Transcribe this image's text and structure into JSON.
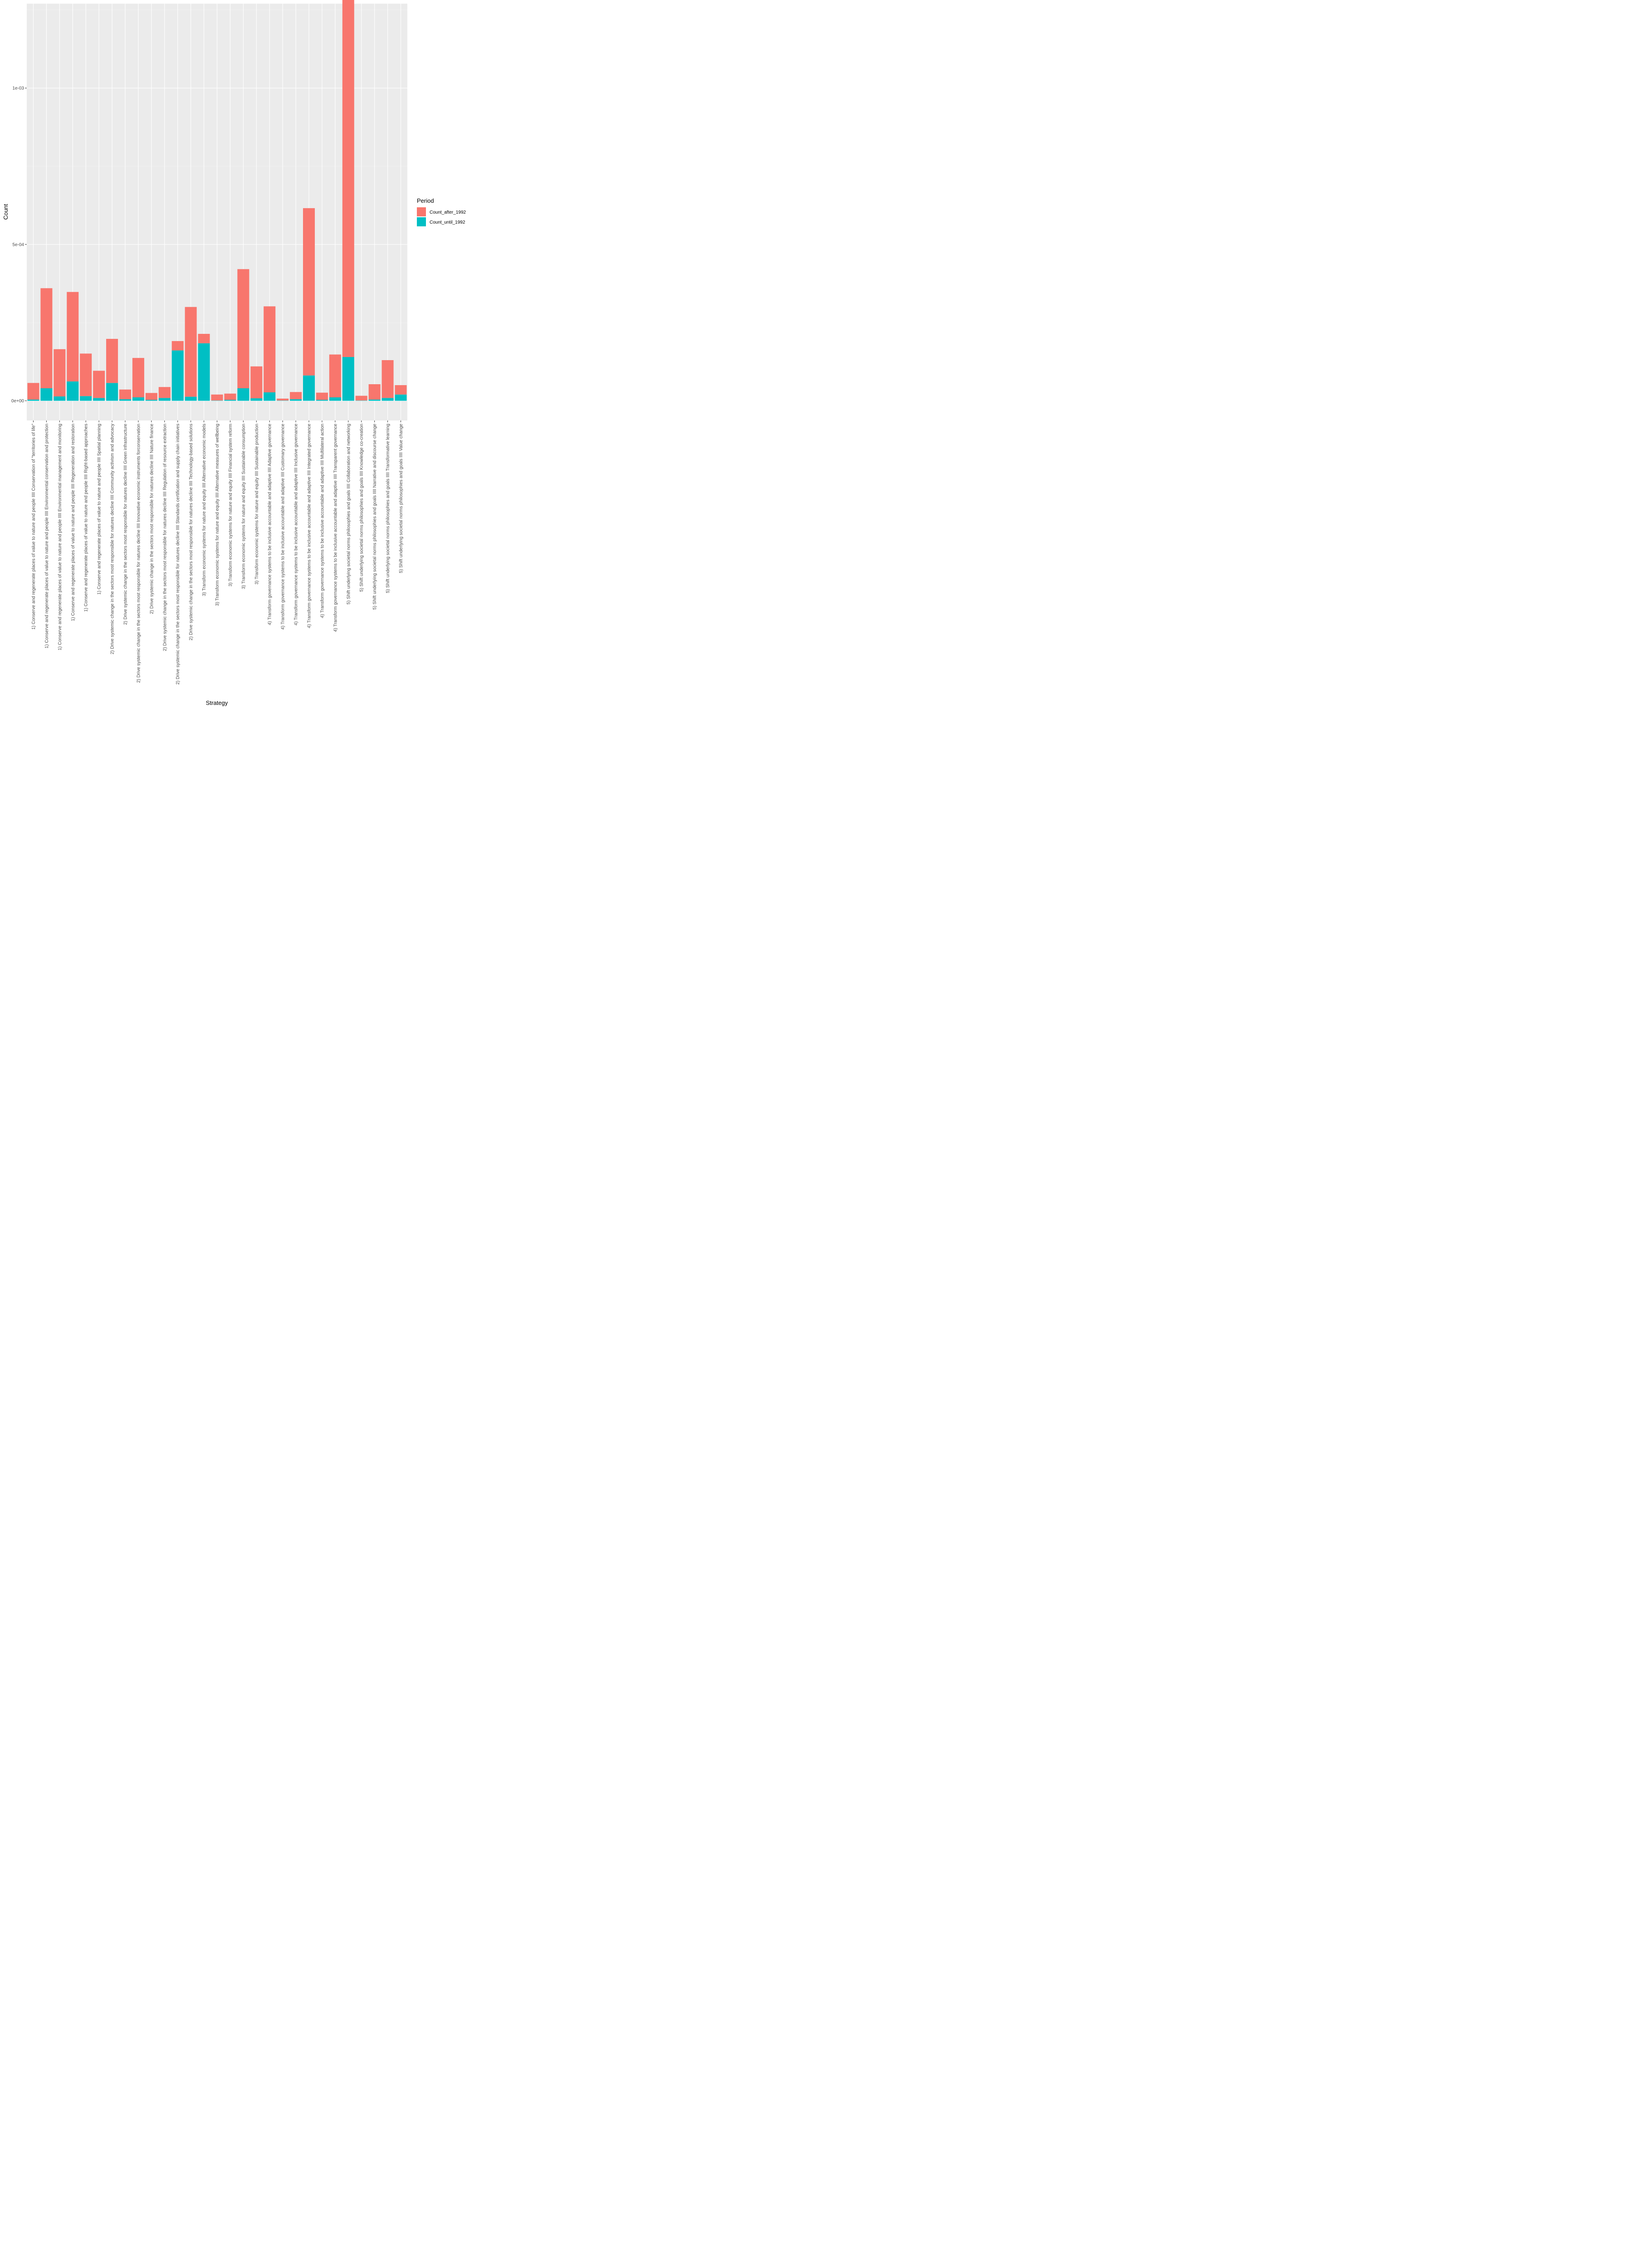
{
  "chart_data": {
    "type": "bar",
    "stacked": true,
    "xlabel": "Strategy",
    "ylabel": "Count",
    "ylim": [
      -6.3e-05,
      0.00127
    ],
    "y_ticks": [
      0,
      0.0005,
      0.001
    ],
    "y_tick_labels": [
      "0e+00",
      "5e-04",
      "1e-03"
    ],
    "grid": true,
    "legend": {
      "title": "Period",
      "position": "right"
    },
    "categories": [
      "1) Conserve and regenerate places of value to nature and people IIII Conservation of \"territories of life\"",
      "1) Conserve and regenerate places of value to nature and people IIII Environmental conservation and protection",
      "1) Conserve and regenerate places of value to nature and people IIII Environmental management and monitoring",
      "1) Conserve and regenerate places of value to nature and people IIII Regeneration and restoration",
      "1) Conserve and regenerate places of value to nature and people IIII Right-based approaches",
      "1) Conserve and regenerate places of value to nature and people IIII Spatial planning",
      "2) Drive systemic change in the sectors most responsible for natures decline IIII Community activism and advocacy",
      "2) Drive systemic change in the sectors most responsible for natures decline IIII Green infrastructure",
      "2) Drive systemic change in the sectors most responsible for natures decline IIII Innovative economic instruments forconservation",
      "2) Drive systemic change in the sectors most responsible for natures decline IIII Nature finance",
      "2) Drive systemic change in the sectors most responsible for natures decline IIII Regulation of resource extraction",
      "2) Drive systemic change in the sectors most responsible for natures decline IIII Standards certification and supply chain initiatives",
      "2) Drive systemic change in the sectors most responsible for natures decline IIII Technology-based solutions",
      "3) Transform economic systems for nature and equity IIII Alternative economic models",
      "3) Transform economic systems for nature and equity IIII Alternative measures of wellbeing",
      "3) Transform economic systems for nature and equity IIII Financial system reform",
      "3) Transform economic systems for nature and equity IIII Sustainable consumption",
      "3) Transform economic systems for nature and equity IIII Sustainable production",
      "4) Transform governance systems to be inclusive accountable and adaptive IIII Adaptive governance",
      "4) Transform governance systems to be inclusive accountable and adaptive IIII Customary governance",
      "4) Transform governance systems to be inclusive accountable and adaptive IIII Inclusive governance",
      "4) Transform governance systems to be inclusive accountable and adaptive IIII Integrated governance",
      "4) Transform governance systems to be inclusive accountable and adaptive IIII Multilateral action",
      "4) Transform governance systems to be inclusive accountable and adaptive IIII Transparent governance",
      "5) Shift underlying societal norms philosophies and goals IIII Collaboration and networking",
      "5) Shift underlying societal norms philosophies and goals IIII Knowledge co-creation",
      "5) Shift underlying societal norms philosophies and goals IIII Narrative and discourse change",
      "5) Shift underlying societal norms philosophies and goals IIII Transformative learning",
      "5) Shift underlying societal norms philosophies and goals IIII Value change"
    ],
    "series": [
      {
        "name": "Count_until_1992",
        "color": "#00BFC4",
        "values": [
          4e-06,
          4e-05,
          1.4e-05,
          6.2e-05,
          1.5e-05,
          9e-06,
          5.7e-05,
          5e-06,
          1.1e-05,
          3e-06,
          9e-06,
          0.000161,
          1.3e-05,
          0.000184,
          1e-06,
          3e-06,
          4e-05,
          8e-06,
          2.7e-05,
          1e-06,
          5e-06,
          8.1e-05,
          3e-06,
          1.1e-05,
          0.00014,
          1e-06,
          4e-06,
          9e-06,
          2e-05
        ]
      },
      {
        "name": "Count_after_1992",
        "color": "#F8766D",
        "values": [
          5.3e-05,
          0.00032,
          0.000151,
          0.000286,
          0.000136,
          8.7e-05,
          0.000141,
          3.1e-05,
          0.000126,
          2.2e-05,
          3.5e-05,
          3e-05,
          0.000287,
          3e-05,
          1.9e-05,
          2e-05,
          0.000381,
          0.000102,
          0.000275,
          6e-06,
          2.3e-05,
          0.000535,
          2.3e-05,
          0.000137,
          0.00115,
          1.5e-05,
          4.9e-05,
          0.000121,
          3e-05
        ]
      }
    ]
  }
}
